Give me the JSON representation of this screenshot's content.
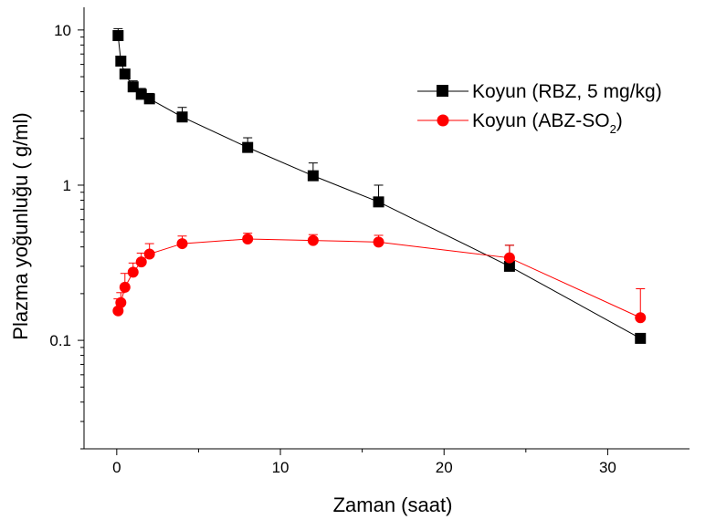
{
  "chart_data": {
    "type": "scatter",
    "title": "",
    "xlabel": "Zaman (saat)",
    "ylabel": "Plazma yoğunluğu (   g/ml)",
    "xlim": [
      -2,
      35
    ],
    "ylim": [
      0.02,
      14
    ],
    "y_scale": "log",
    "x_ticks": [
      0,
      10,
      20,
      30
    ],
    "y_ticks": [
      {
        "value": 10,
        "label": "10"
      },
      {
        "value": 1,
        "label": "1"
      },
      {
        "value": 0.1,
        "label": "0.1"
      }
    ],
    "grid": false,
    "legend_position": "top-right",
    "series": [
      {
        "name": "Koyun (RBZ, 5 mg/kg)",
        "color": "#000000",
        "marker": "square",
        "x": [
          0.083,
          0.25,
          0.5,
          1,
          1.5,
          2,
          4,
          8,
          12,
          16,
          24,
          32
        ],
        "y": [
          9.2,
          6.3,
          5.2,
          4.3,
          3.85,
          3.6,
          2.75,
          1.75,
          1.15,
          0.78,
          0.3,
          0.103
        ],
        "err_up": [
          1.0,
          0.3,
          0.3,
          0.4,
          0.35,
          0.3,
          0.42,
          0.27,
          0.24,
          0.22,
          0.11,
          0.0
        ]
      },
      {
        "name": "Koyun (ABZ-SO",
        "name_sub": "2",
        "name_tail": ")",
        "color": "#ff0000",
        "marker": "circle",
        "x": [
          0.083,
          0.25,
          0.5,
          1,
          1.5,
          2,
          4,
          8,
          12,
          16,
          24,
          32
        ],
        "y": [
          0.155,
          0.175,
          0.22,
          0.275,
          0.32,
          0.36,
          0.42,
          0.45,
          0.44,
          0.43,
          0.34,
          0.14
        ],
        "err_up": [
          0.03,
          0.028,
          0.05,
          0.04,
          0.045,
          0.06,
          0.05,
          0.04,
          0.04,
          0.045,
          0.07,
          0.075
        ]
      }
    ]
  }
}
